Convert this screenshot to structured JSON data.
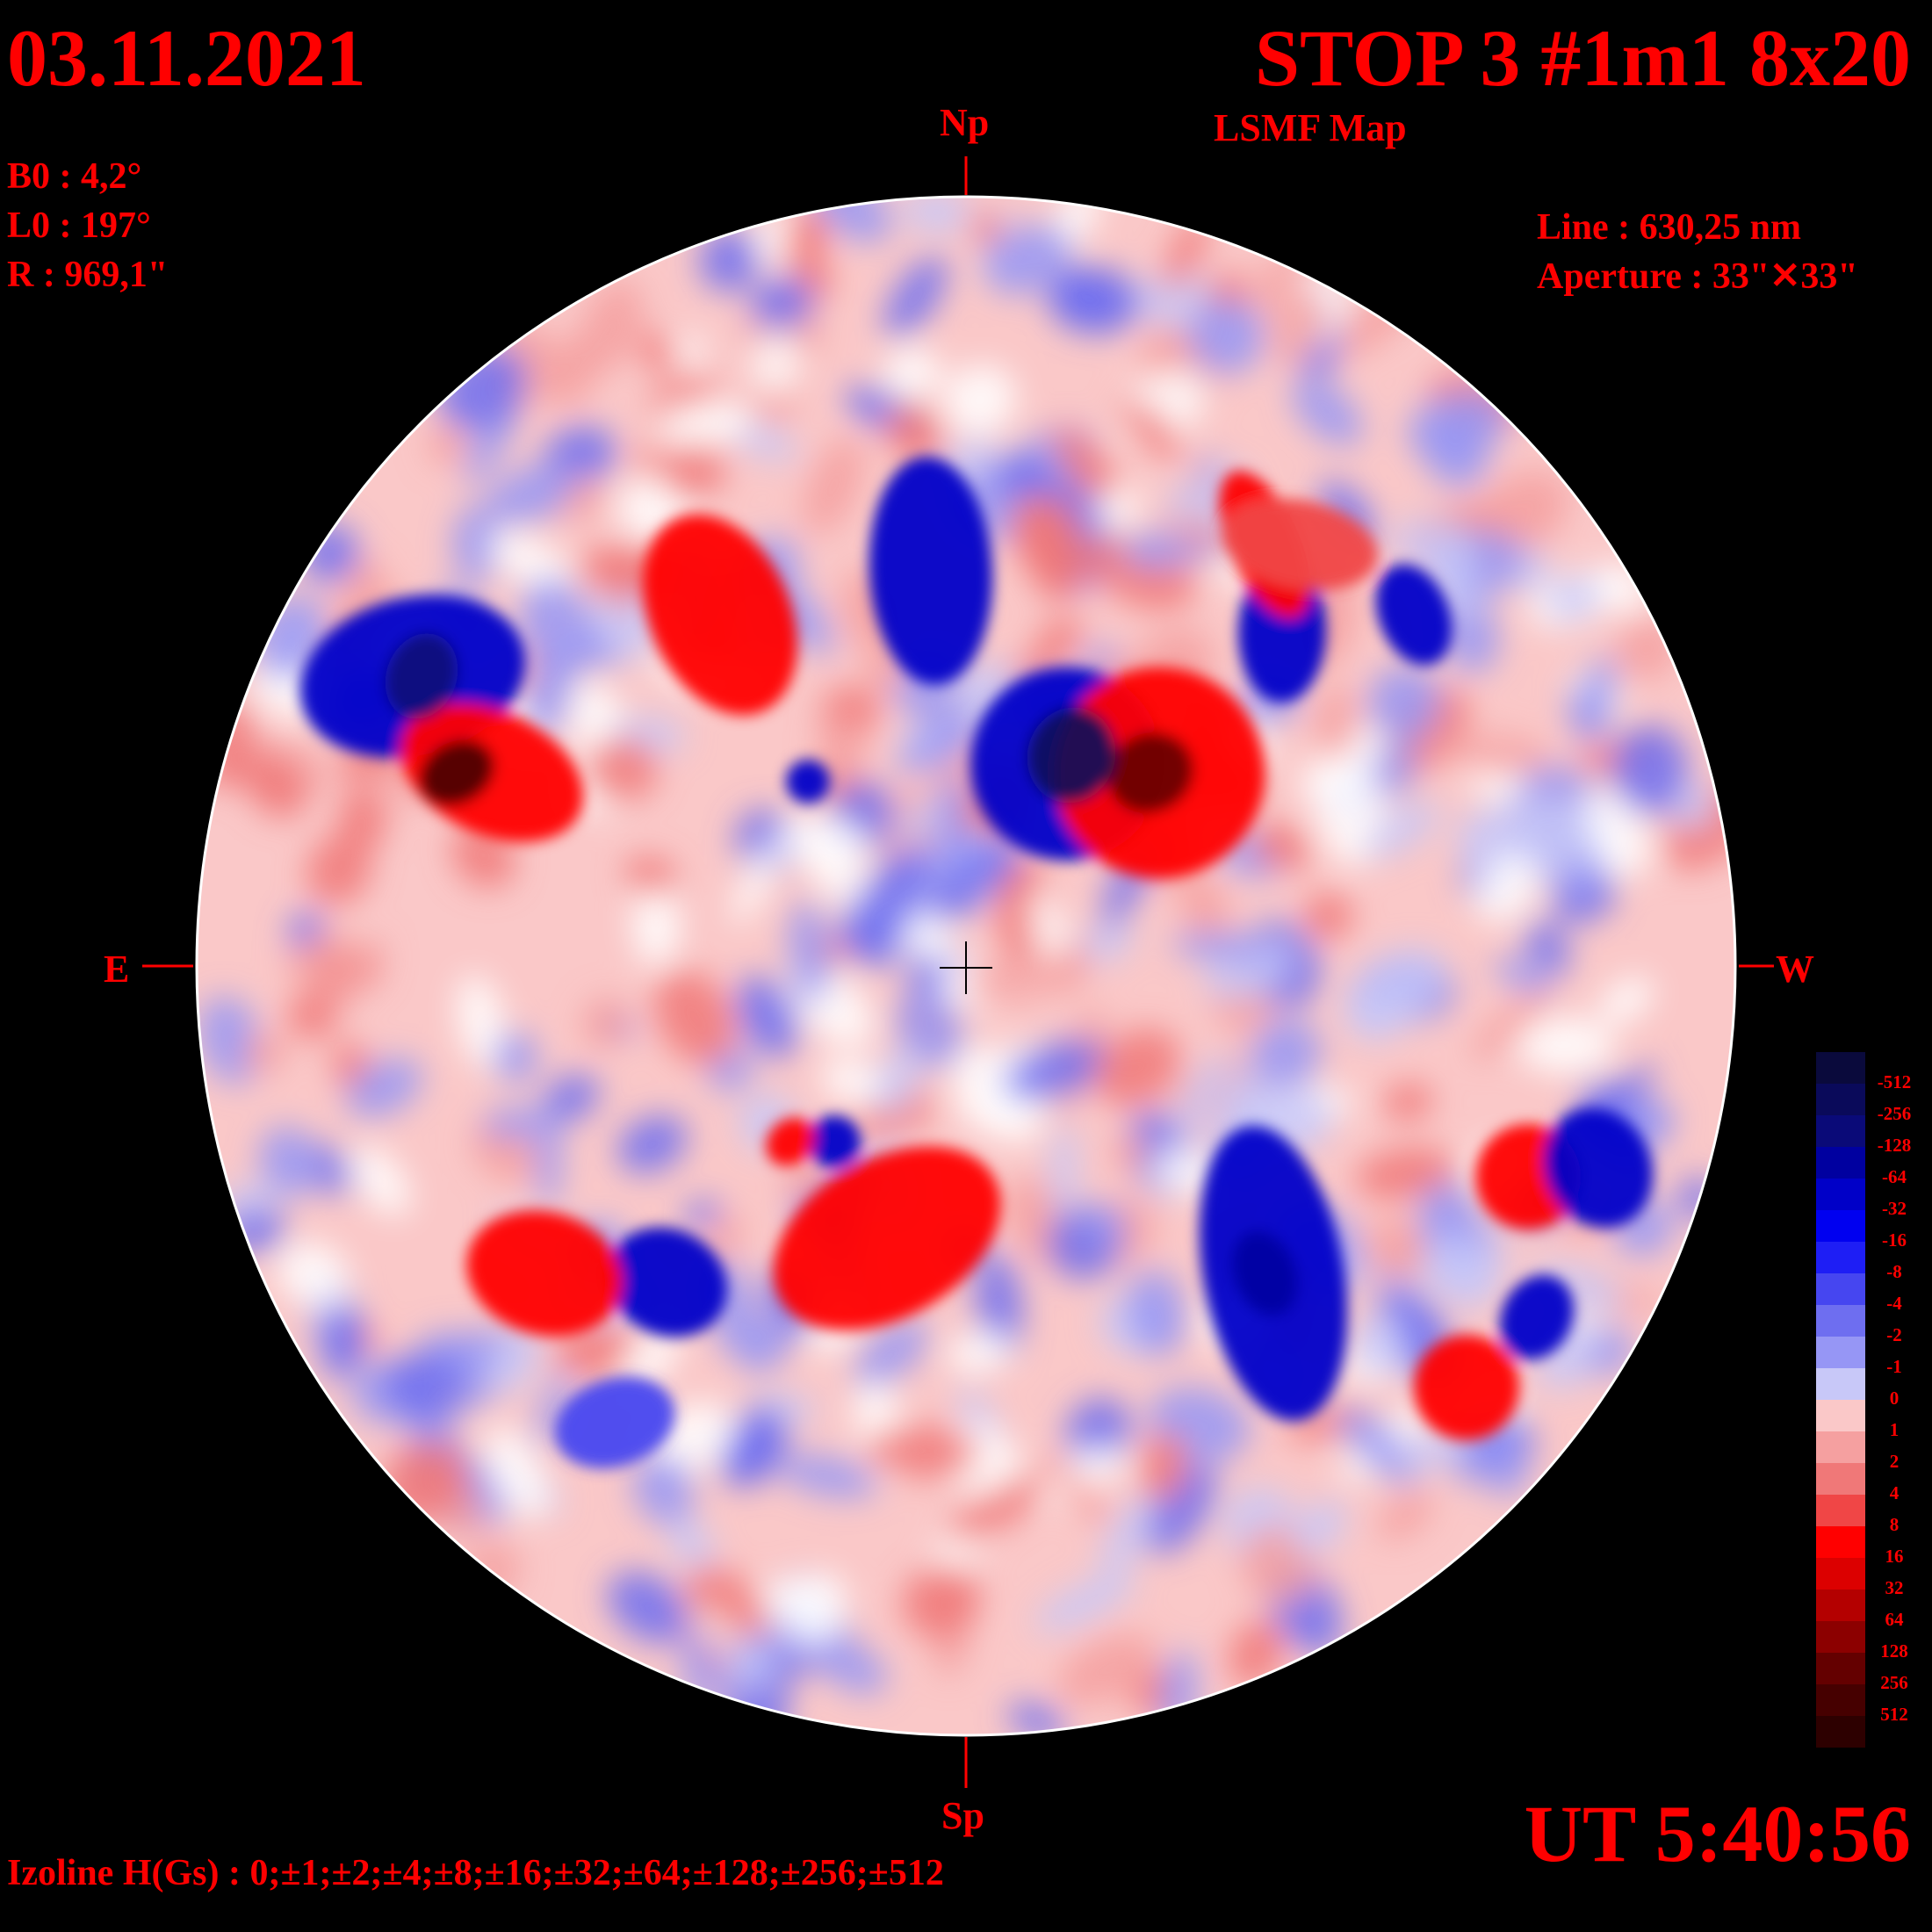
{
  "header": {
    "date": "03.11.2021",
    "title": "STOP 3 #1m1 8x20",
    "subtitle": "LSMF  Map"
  },
  "params": {
    "b0": "B0 : 4,2°",
    "l0": "L0 : 197°",
    "r": "R  : 969,1\"",
    "line": "Line :  630,25 nm",
    "aperture": "Aperture : 33\"✕33\""
  },
  "orientation": {
    "north": "Np",
    "south": "Sp",
    "east": "E",
    "west": "W"
  },
  "footer": {
    "time": "UT 5:40:56",
    "izoline": "Izoline H(Gs) : 0;±1;±2;±4;±8;±16;±32;±64;±128;±256;±512"
  },
  "colorbar": {
    "levels": [
      "-512",
      "-256",
      "-128",
      "-64",
      "-32",
      "-16",
      "-8",
      "-4",
      "-2",
      "-1",
      "0",
      "1",
      "2",
      "4",
      "8",
      "16",
      "32",
      "64",
      "128",
      "256",
      "512"
    ],
    "colors": [
      "#0a0a3c",
      "#0a0a5a",
      "#0a0a78",
      "#0000a0",
      "#0000c8",
      "#0000f0",
      "#1e1ef5",
      "#4646f0",
      "#6e6ef0",
      "#9696f5",
      "#c8c8f8",
      "#fac8c8",
      "#f5a0a0",
      "#f07878",
      "#f04646",
      "#ff0000",
      "#dc0000",
      "#b40000",
      "#8c0000",
      "#640000",
      "#460000",
      "#2d0000"
    ]
  },
  "map_colors": {
    "negative_strong": "#0000c8",
    "negative_weak": "#9696f5",
    "positive_weak": "#f5a0a0",
    "positive_strong": "#ff0000",
    "neutral_positive": "#fac8c8",
    "neutral_negative": "#c8c8f8"
  }
}
